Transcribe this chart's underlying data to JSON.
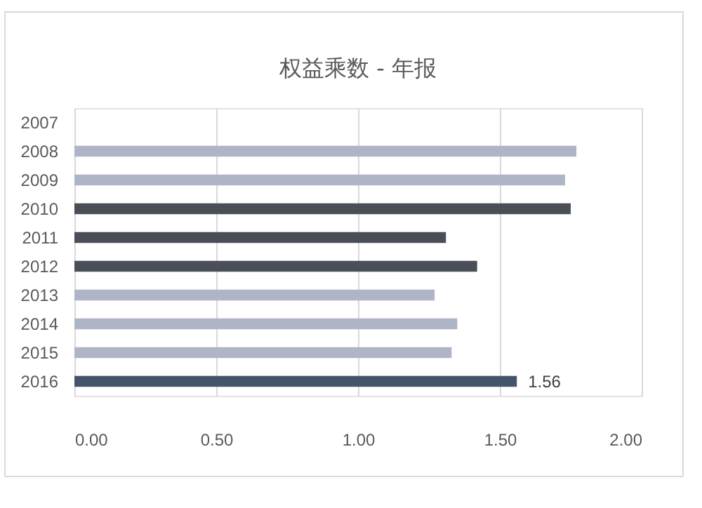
{
  "chart_data": {
    "type": "bar",
    "orientation": "horizontal",
    "title": "权益乘数 - 年报",
    "categories": [
      "2007",
      "2008",
      "2009",
      "2010",
      "2011",
      "2012",
      "2013",
      "2014",
      "2015",
      "2016"
    ],
    "values": [
      null,
      1.77,
      1.73,
      1.75,
      1.31,
      1.42,
      1.27,
      1.35,
      1.33,
      1.56
    ],
    "colors": [
      "#adb5c7",
      "#adb5c7",
      "#adb5c7",
      "#4a4e57",
      "#4a4e57",
      "#4a4e57",
      "#adb5c7",
      "#adb5c7",
      "#adb5c7",
      "#44546a"
    ],
    "value_labels": [
      null,
      null,
      null,
      null,
      null,
      null,
      null,
      null,
      null,
      "1.56"
    ],
    "xlim": [
      0,
      2
    ],
    "xticks": [
      {
        "value": 0,
        "label": "0.00"
      },
      {
        "value": 0.5,
        "label": "0.50"
      },
      {
        "value": 1,
        "label": "1.00"
      },
      {
        "value": 1.5,
        "label": "1.50"
      },
      {
        "value": 2,
        "label": "2.00"
      }
    ],
    "grid": "x"
  }
}
